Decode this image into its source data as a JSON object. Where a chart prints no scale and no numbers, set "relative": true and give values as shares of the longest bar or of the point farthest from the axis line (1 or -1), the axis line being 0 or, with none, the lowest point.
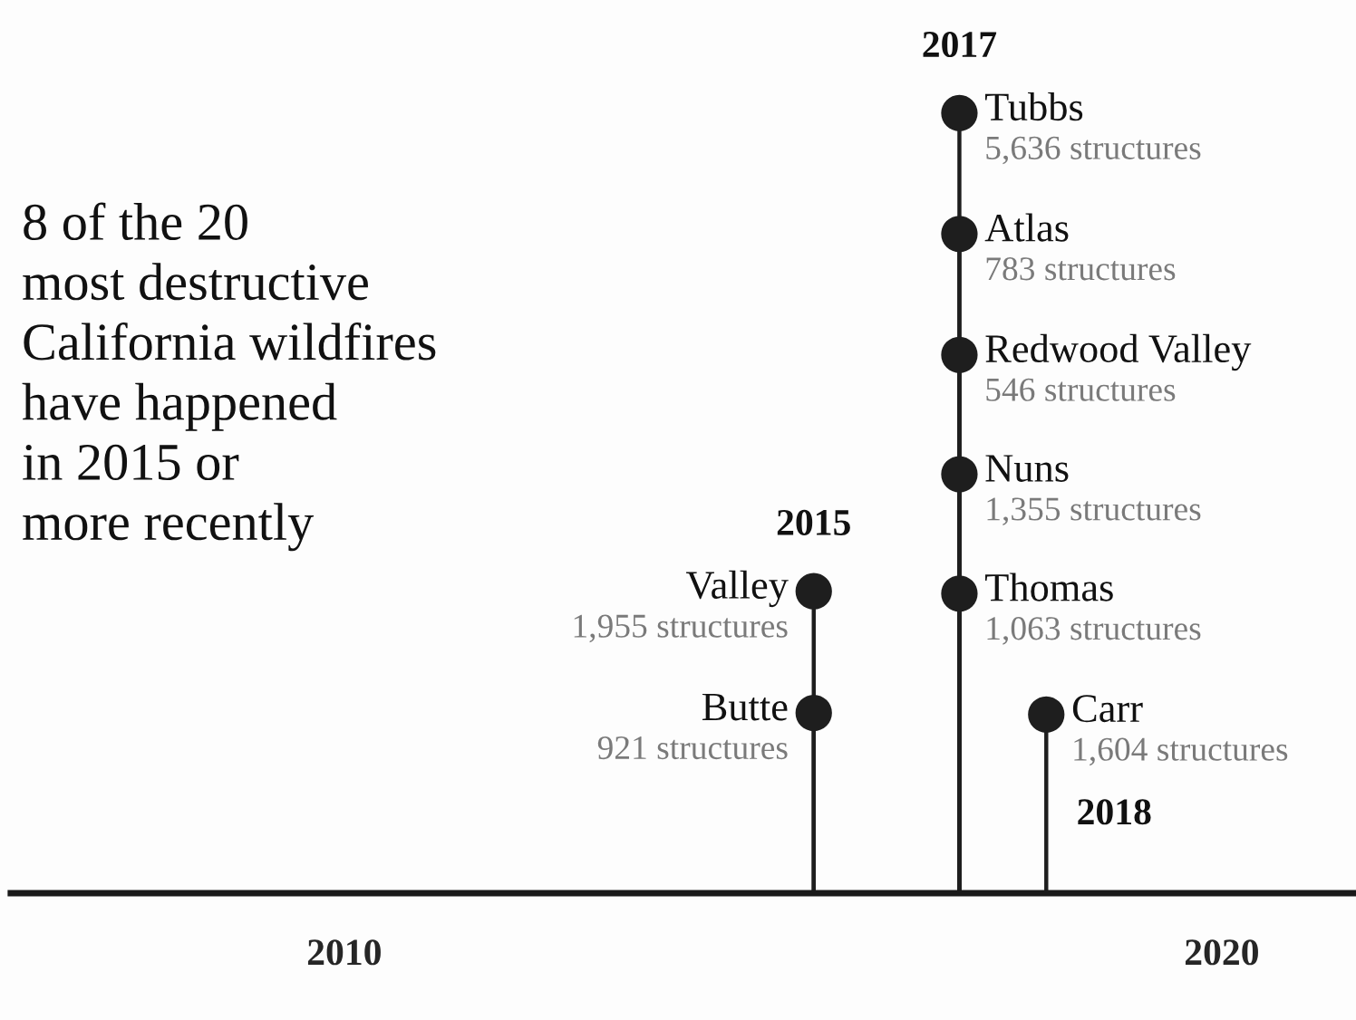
{
  "chart_data": {
    "type": "lollipop",
    "title": "8 of the 20\nmost destructive\nCalifornia wildfires\nhave happened\nin 2015 or\nmore recently",
    "relative": true,
    "xlim": [
      2006.2,
      2021.53
    ],
    "xticks": [
      2010,
      2020
    ],
    "tick_labels": "x",
    "marker": "circle",
    "series": [
      {
        "color": "#1e1e1e",
        "x": [
          2017.01,
          2017.01,
          2017.01,
          2017.01,
          2017.01,
          2015.35,
          2015.35,
          2018.0
        ],
        "values": [
          1.0,
          0.845,
          0.69,
          0.537,
          0.384,
          0.387,
          0.231,
          0.229
        ]
      }
    ],
    "annotations": [
      {
        "text": "Tubbs",
        "x": 2017.01,
        "y": 1.0
      },
      {
        "text": "5,636 structures",
        "x": 2017.01,
        "y": 1.0
      },
      {
        "text": "Atlas",
        "x": 2017.01,
        "y": 0.845
      },
      {
        "text": "783 structures",
        "x": 2017.01,
        "y": 0.845
      },
      {
        "text": "Redwood Valley",
        "x": 2017.01,
        "y": 0.69
      },
      {
        "text": "546 structures",
        "x": 2017.01,
        "y": 0.69
      },
      {
        "text": "Nuns",
        "x": 2017.01,
        "y": 0.537
      },
      {
        "text": "1,355 structures",
        "x": 2017.01,
        "y": 0.537
      },
      {
        "text": "Thomas",
        "x": 2017.01,
        "y": 0.384
      },
      {
        "text": "1,063 structures",
        "x": 2017.01,
        "y": 0.384
      },
      {
        "text": "Valley",
        "x": 2015.35,
        "y": 0.387
      },
      {
        "text": "1,955 structures",
        "x": 2015.35,
        "y": 0.387
      },
      {
        "text": "Butte",
        "x": 2015.35,
        "y": 0.231
      },
      {
        "text": "921 structures",
        "x": 2015.35,
        "y": 0.231
      },
      {
        "text": "Carr",
        "x": 2018.0,
        "y": 0.229
      },
      {
        "text": "1,604 structures",
        "x": 2018.0,
        "y": 0.229
      },
      "2017",
      "2015",
      "2018"
    ]
  }
}
